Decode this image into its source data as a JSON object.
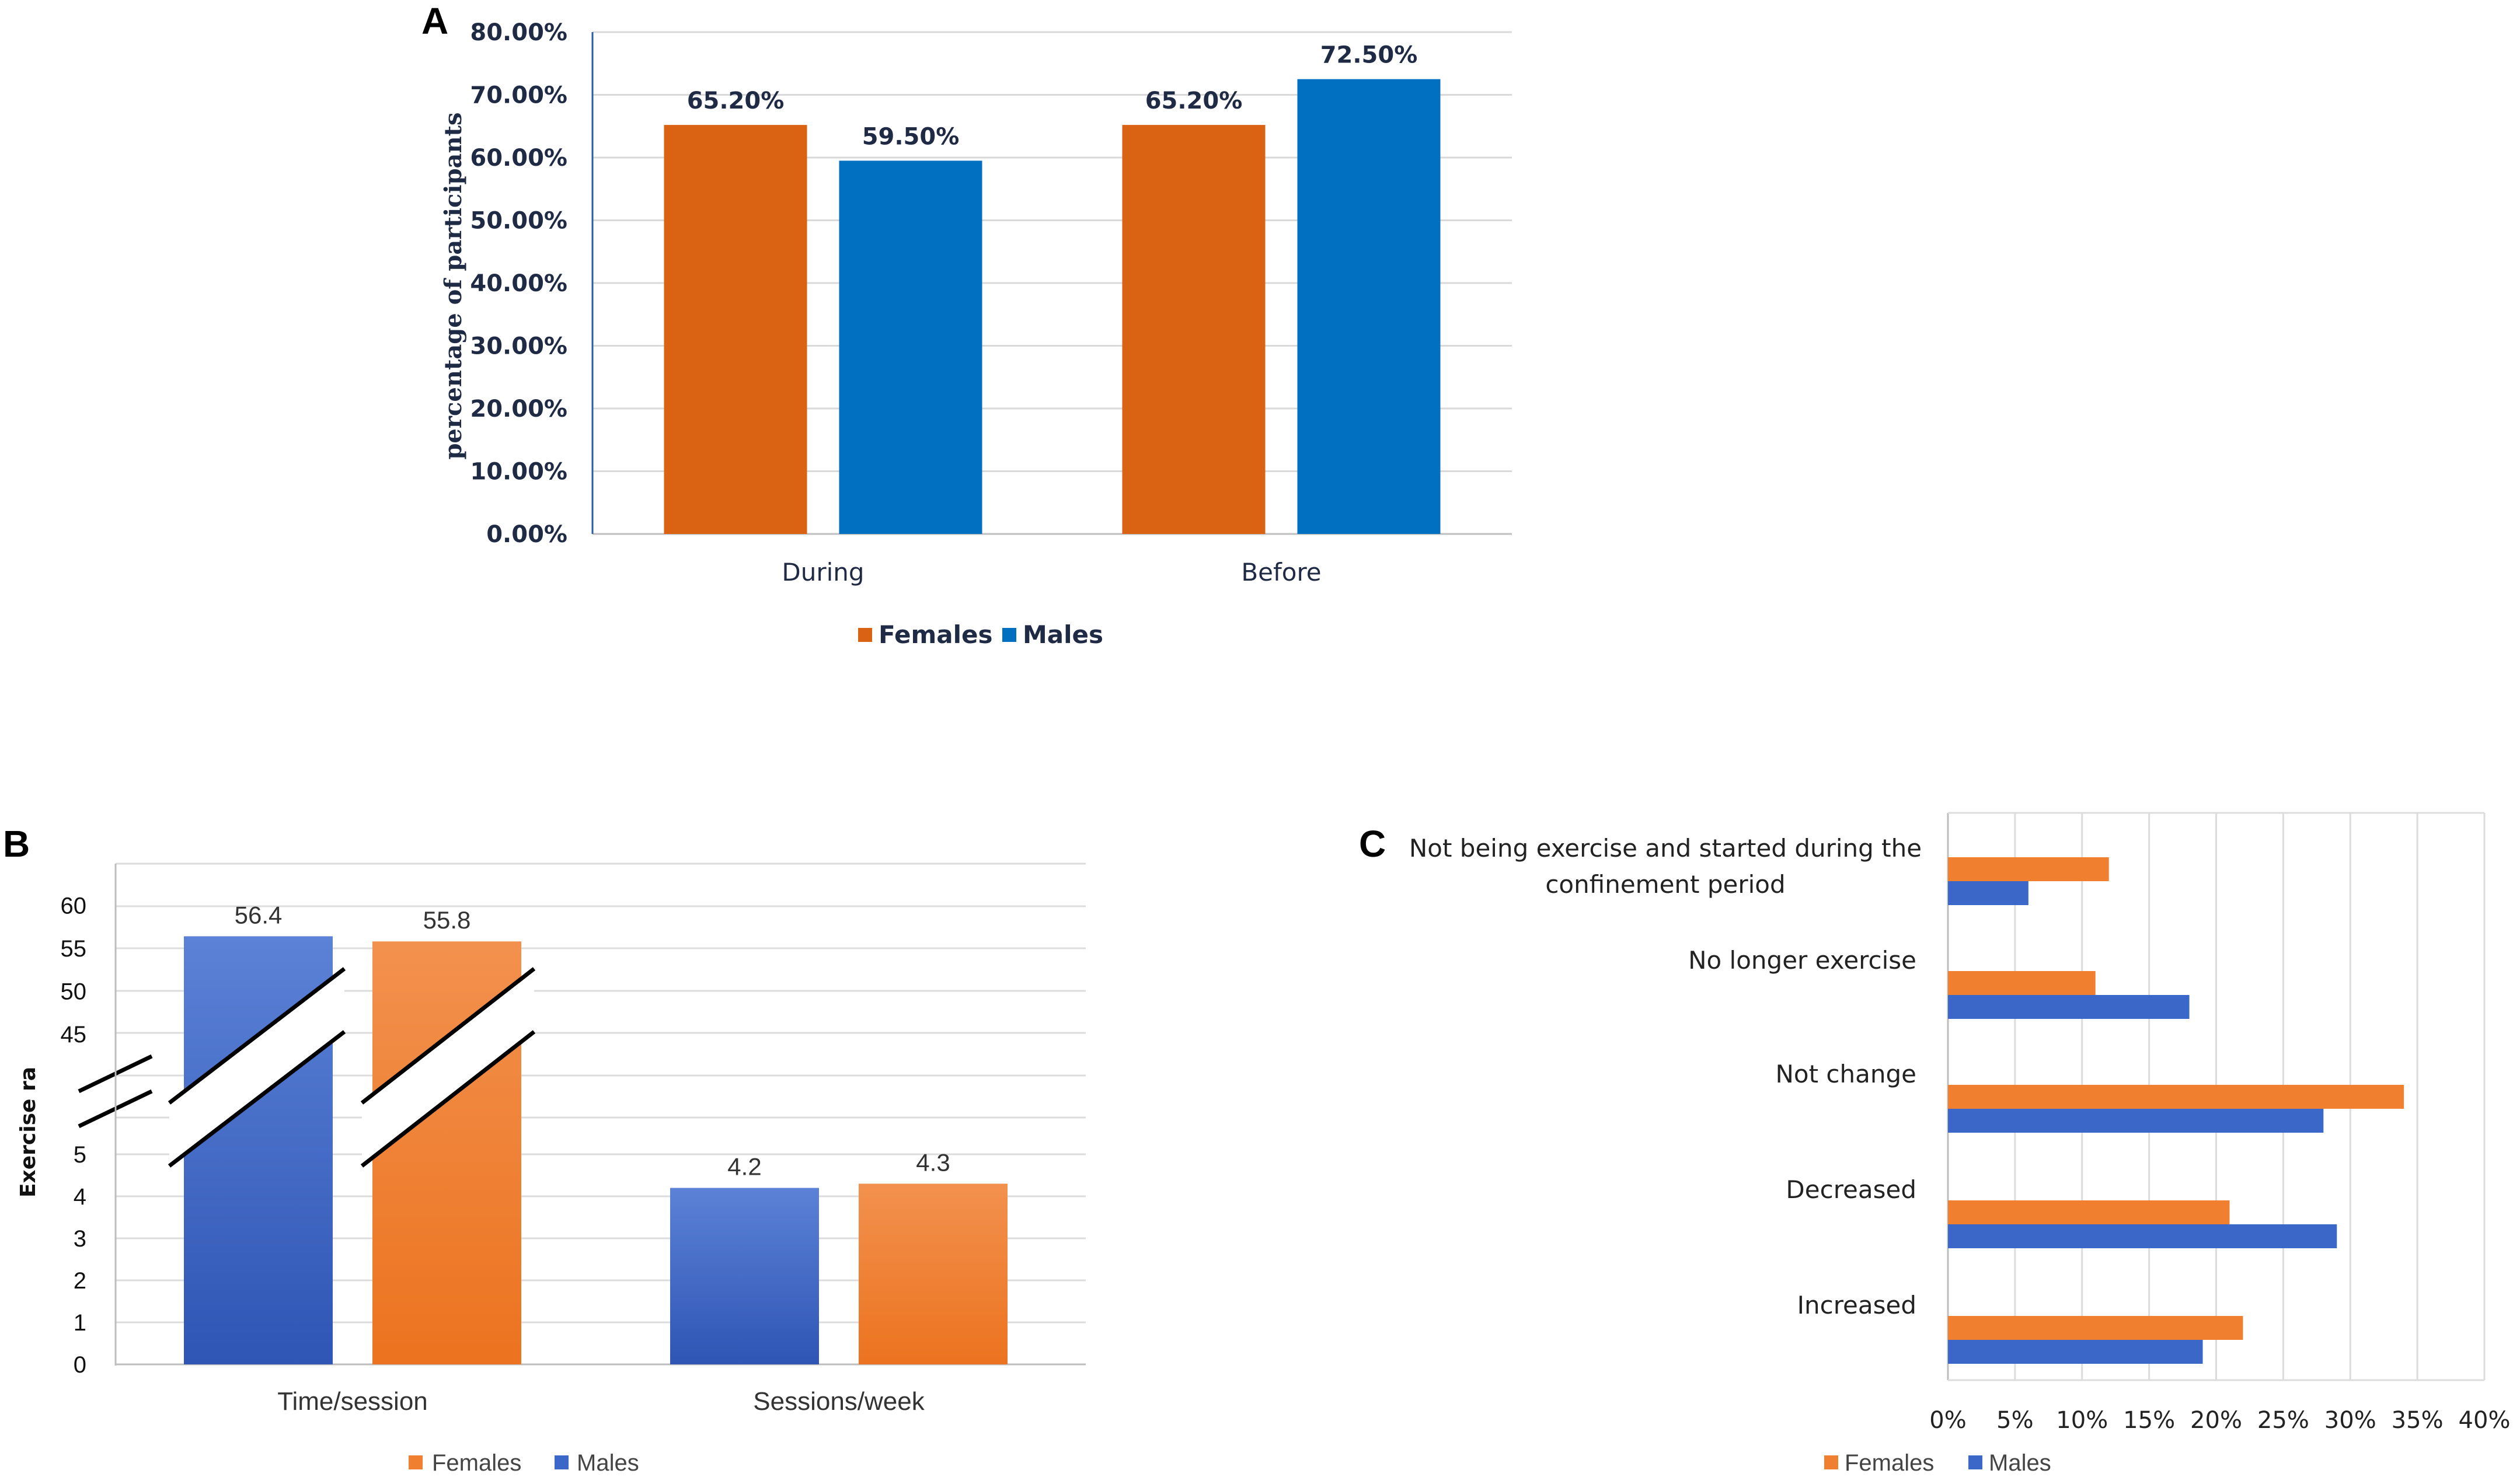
{
  "chart_data": [
    {
      "panel": "A",
      "type": "bar",
      "categories": [
        "During",
        "Before"
      ],
      "series": [
        {
          "name": "Females",
          "values": [
            65.2,
            65.2
          ],
          "labels": [
            "65.20%",
            "65.20%"
          ],
          "color": "#d96213"
        },
        {
          "name": "Males",
          "values": [
            59.5,
            72.5
          ],
          "labels": [
            "59.50%",
            "72.50%"
          ],
          "color": "#0270c0"
        }
      ],
      "ylabel": "percentage of participants",
      "ylim": [
        0,
        80
      ],
      "yticks": [
        "0.00%",
        "10.00%",
        "20.00%",
        "30.00%",
        "40.00%",
        "50.00%",
        "60.00%",
        "70.00%",
        "80.00%"
      ],
      "grid": true,
      "legend": "bottom"
    },
    {
      "panel": "B",
      "type": "bar",
      "categories": [
        "Time/session",
        "Sessions/week"
      ],
      "series": [
        {
          "name": "Males",
          "values": [
            56.4,
            4.2
          ],
          "labels": [
            "56.4",
            "4.2"
          ],
          "color": "#3b68c8"
        },
        {
          "name": "Females",
          "values": [
            55.8,
            4.3
          ],
          "labels": [
            "55.8",
            "4.3"
          ],
          "color": "#f07f30"
        }
      ],
      "ylabel": "Exercise ra",
      "yticks_lower": [
        "0",
        "1",
        "2",
        "3",
        "4",
        "5"
      ],
      "yticks_upper": [
        "45",
        "50",
        "55",
        "60"
      ],
      "broken_axis": true,
      "grid": true,
      "legend_order": [
        "Females",
        "Males"
      ],
      "legend": "bottom"
    },
    {
      "panel": "C",
      "type": "bar",
      "orientation": "horizontal",
      "categories": [
        "Not being exercise and started during the confinement period",
        "No longer exercise",
        "Not change",
        "Decreased",
        "Increased"
      ],
      "category_lines": [
        [
          "Not being exercise and started during the",
          "confinement period"
        ],
        [
          "No longer exercise"
        ],
        [
          "Not change"
        ],
        [
          "Decreased"
        ],
        [
          "Increased"
        ]
      ],
      "series": [
        {
          "name": "Females",
          "values": [
            12,
            11,
            34,
            21,
            22
          ],
          "color": "#f07f30"
        },
        {
          "name": "Males",
          "values": [
            6,
            18,
            28,
            29,
            19
          ],
          "color": "#3b68c8"
        }
      ],
      "xlim": [
        0,
        40
      ],
      "xticks": [
        "0%",
        "5%",
        "10%",
        "15%",
        "20%",
        "25%",
        "30%",
        "35%",
        "40%"
      ],
      "grid": true,
      "legend": "bottom"
    }
  ]
}
